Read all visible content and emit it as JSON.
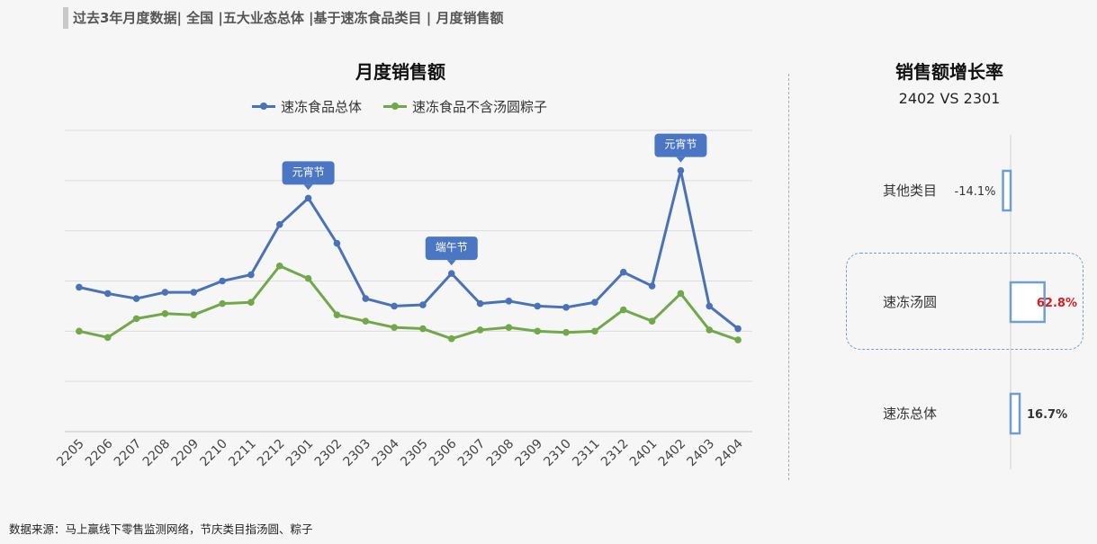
{
  "header": "过去3年月度数据| 全国 |五大业态总体 |基于速冻食品类目 | 月度销售额",
  "source": "数据来源：马上赢线下零售监测网络，节庆类目指汤圆、粽子",
  "chart_data": [
    {
      "type": "line",
      "title": "月度销售额",
      "categories": [
        "2205",
        "2206",
        "2207",
        "2208",
        "2209",
        "2210",
        "2211",
        "2212",
        "2301",
        "2302",
        "2303",
        "2304",
        "2305",
        "2306",
        "2307",
        "2308",
        "2309",
        "2310",
        "2311",
        "2312",
        "2401",
        "2402",
        "2403",
        "2404"
      ],
      "series": [
        {
          "name": "速冻食品总体",
          "color": "#4a72b8",
          "values": [
            37.5,
            35.0,
            33.0,
            35.5,
            35.5,
            40.0,
            42.5,
            62.5,
            73.0,
            55.0,
            33.0,
            30.0,
            30.5,
            43.0,
            31.0,
            32.0,
            30.0,
            29.5,
            31.5,
            43.5,
            38.0,
            84.0,
            30.0,
            21.0
          ]
        },
        {
          "name": "速冻食品不含汤圆粽子",
          "color": "#70a84a",
          "values": [
            20.0,
            17.5,
            25.0,
            27.0,
            26.5,
            31.0,
            31.5,
            46.0,
            41.0,
            26.5,
            24.0,
            21.5,
            21.0,
            17.0,
            20.5,
            21.5,
            20.0,
            19.5,
            20.0,
            28.5,
            24.0,
            35.0,
            20.5,
            16.5
          ]
        }
      ],
      "ylim": [
        -20,
        100
      ],
      "grid": true,
      "legend": "top",
      "y_tick_labels_shown": false,
      "annotations": [
        {
          "text": "元宵节",
          "category": "2301"
        },
        {
          "text": "端午节",
          "category": "2306"
        },
        {
          "text": "元宵节",
          "category": "2402"
        }
      ]
    },
    {
      "type": "bar",
      "title": "销售额增长率",
      "subtitle": "2402 VS 2301",
      "orientation": "horizontal",
      "categories": [
        "其他类目",
        "速冻汤圆",
        "速冻总体"
      ],
      "values": [
        -14.1,
        62.8,
        16.7
      ],
      "value_labels": [
        "-14.1%",
        "62.8%",
        "16.7%"
      ],
      "highlight": "速冻汤圆",
      "highlight_label_color": "#d42020",
      "bar_color": "#6f9fd0"
    }
  ]
}
